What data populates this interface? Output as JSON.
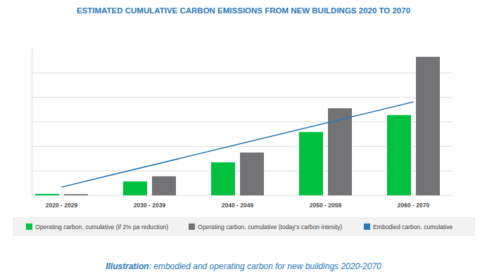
{
  "chart_data": {
    "type": "bar",
    "title": "ESTIMATED CUMULATIVE CARBON EMISSIONS FROM NEW BUILDINGS 2020 TO 2070",
    "annotations": [
      "Illustration",
      ": embodied and operating carbon for new buildings 2020-2070"
    ],
    "categories": [
      "2020 - 2029",
      "2030 - 2039",
      "2040 - 2049",
      "2050 - 2059",
      "2060 - 2070"
    ],
    "series": [
      {
        "name": "Operating carbon, cumulative (if 2% pa reduction)",
        "type": "bar",
        "color": "#00c13f",
        "values": [
          0.06,
          0.57,
          1.35,
          2.59,
          3.28
        ]
      },
      {
        "name": "Operating carbon, cumulative (today's carbon intesity)",
        "type": "bar",
        "color": "#737376",
        "values": [
          0.05,
          0.78,
          1.75,
          3.56,
          5.66
        ]
      },
      {
        "name": "Embodied carbon, cumulative",
        "type": "line",
        "color": "#2a78b8",
        "values": [
          0.34,
          1.21,
          2.08,
          2.95,
          3.82
        ]
      }
    ],
    "ylim": [
      0,
      6
    ],
    "yticks": [
      0,
      1,
      2,
      3,
      4,
      5
    ],
    "grid": true,
    "tick_labels": "x",
    "legend": "bottom"
  }
}
